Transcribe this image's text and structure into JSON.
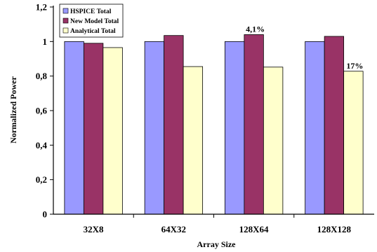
{
  "chart_data": {
    "type": "bar",
    "xlabel": "Array Size",
    "ylabel": "Normalized Power",
    "ylim": [
      0,
      1.2
    ],
    "yticks": [
      "0",
      "0,2",
      "0,4",
      "0,6",
      "0,8",
      "1",
      "1,2"
    ],
    "categories": [
      "32X8",
      "64X32",
      "128X64",
      "128X128"
    ],
    "series": [
      {
        "name": "HSPICE Total",
        "color": "#9999ff",
        "values": [
          1.0,
          1.0,
          1.0,
          1.0
        ]
      },
      {
        "name": "New Model Total",
        "color": "#993366",
        "values": [
          0.99,
          1.035,
          1.04,
          1.03
        ]
      },
      {
        "name": "Analytical Total",
        "color": "#ffffcc",
        "values": [
          0.965,
          0.855,
          0.852,
          0.828
        ]
      }
    ],
    "annotations": [
      {
        "text": "4,1%",
        "category": "128X64",
        "series": "New Model Total"
      },
      {
        "text": "17%",
        "category": "128X128",
        "series": "Analytical Total"
      }
    ],
    "grid": false,
    "legend_position": "top-left"
  }
}
